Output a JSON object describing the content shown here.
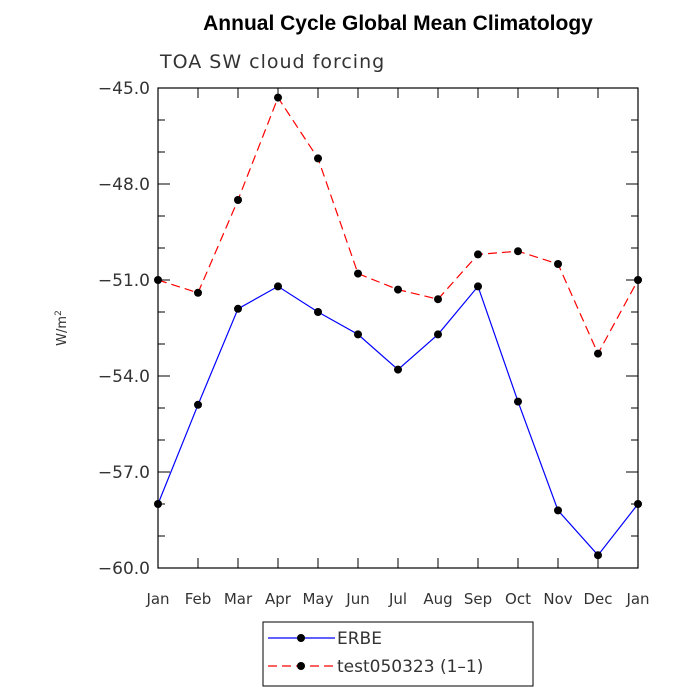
{
  "chart_data": {
    "type": "line",
    "title": "Annual Cycle Global Mean Climatology",
    "subtitle": "TOA SW cloud forcing",
    "ylabel_base": "W/m",
    "ylabel_sup": "2",
    "xlabel": "",
    "categories": [
      "Jan",
      "Feb",
      "Mar",
      "Apr",
      "May",
      "Jun",
      "Jul",
      "Aug",
      "Sep",
      "Oct",
      "Nov",
      "Dec",
      "Jan"
    ],
    "ylim": [
      -60.0,
      -45.0
    ],
    "yticks": [
      "-45.0",
      "-48.0",
      "-51.0",
      "-54.0",
      "-57.0",
      "-60.0"
    ],
    "grid": false,
    "legend_position": "bottom-center",
    "series": [
      {
        "name": "ERBE",
        "color": "#0000ff",
        "line_style": "solid",
        "values": [
          -58.0,
          -54.9,
          -51.9,
          -51.2,
          -52.0,
          -52.7,
          -53.8,
          -52.7,
          -51.2,
          -54.8,
          -58.2,
          -59.6,
          -58.0
        ]
      },
      {
        "name": "test050323 (1–1)",
        "color": "#ff0000",
        "line_style": "dashed",
        "values": [
          -51.0,
          -51.4,
          -48.5,
          -45.3,
          -47.2,
          -50.8,
          -51.3,
          -51.6,
          -50.2,
          -50.1,
          -50.5,
          -53.3,
          -51.0
        ]
      }
    ]
  }
}
